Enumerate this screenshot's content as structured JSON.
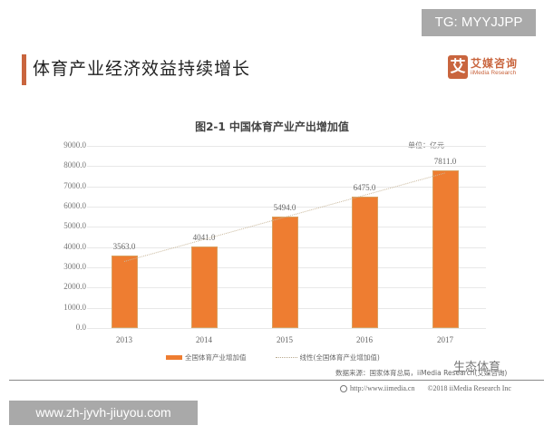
{
  "watermarks": {
    "tg": "TG: MYYJJPP",
    "site": "www.zh-jyvh-jiuyou.com",
    "wechat": "生态体育"
  },
  "header": {
    "title": "体育产业经济效益持续增长",
    "accent_color": "#c9653e",
    "logo": {
      "mark": "艾",
      "name_cn": "艾媒咨询",
      "name_en": "iiMedia Research"
    }
  },
  "chart_data": {
    "type": "bar",
    "title": "图2-1 中国体育产业产出增加值",
    "unit": "单位：亿元",
    "categories": [
      "2013",
      "2014",
      "2015",
      "2016",
      "2017"
    ],
    "values": [
      3563.0,
      4041.0,
      5494.0,
      6475.0,
      7811.0
    ],
    "value_labels": [
      "3563.0",
      "4041.0",
      "5494.0",
      "6475.0",
      "7811.0"
    ],
    "yticks": [
      "9000.0",
      "8000.0",
      "7000.0",
      "6000.0",
      "5000.0",
      "4000.0",
      "3000.0",
      "2000.0",
      "1000.0",
      "0.0"
    ],
    "ylim": [
      0,
      9000
    ],
    "grid": true,
    "bar_color": "#ee7d31",
    "legend": {
      "position": "bottom",
      "series": "全国体育产业增加值",
      "trendline": "线性(全国体育产业增加值)"
    },
    "xlabel": "",
    "ylabel": ""
  },
  "footer": {
    "source": "数据来源：国家体育总局，iiMedia Research(艾媒咨询)",
    "url": "http://www.iimedia.cn",
    "copyright": "©2018 iiMedia Research Inc"
  }
}
